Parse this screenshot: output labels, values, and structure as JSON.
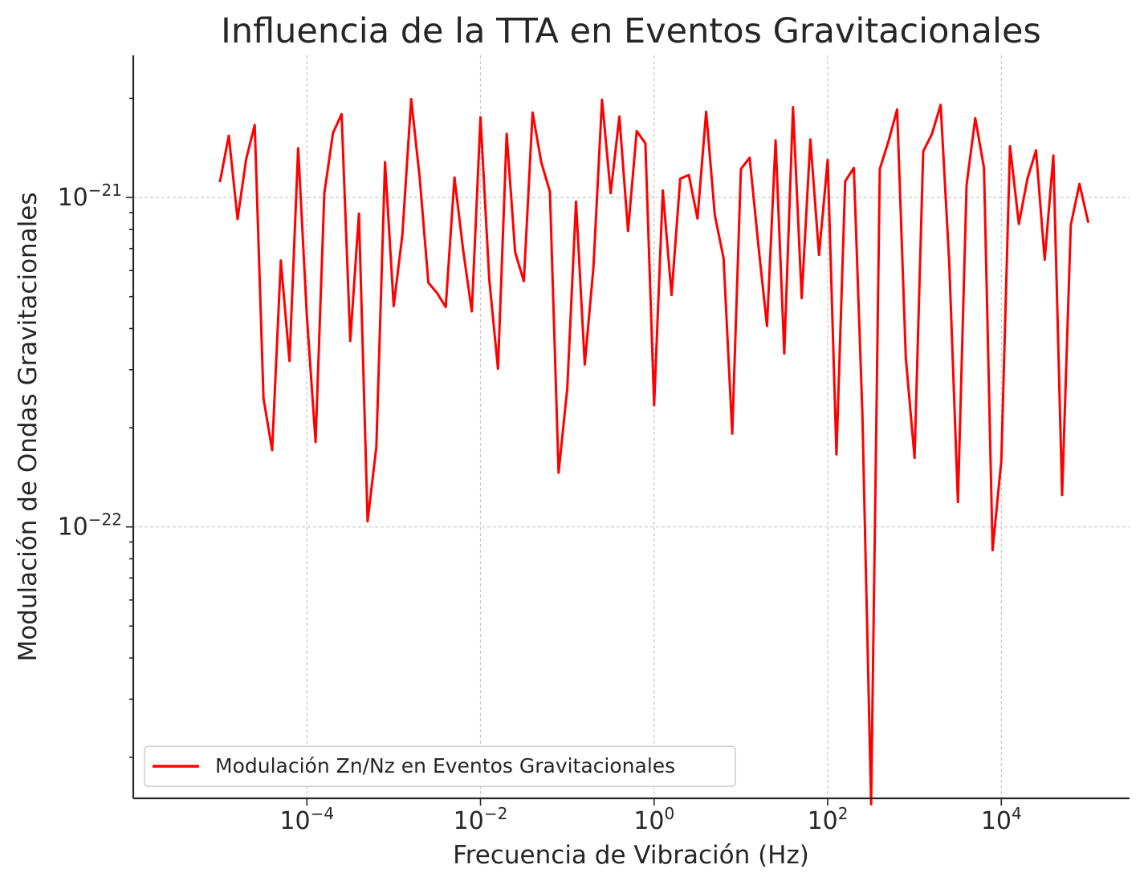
{
  "chart_data": {
    "type": "line",
    "title": "Influencia de la TTA en Eventos Gravitacionales",
    "xlabel": "Frecuencia de Vibración (Hz)",
    "ylabel": "Modulación de Ondas Gravitacionales",
    "x_scale": "log",
    "y_scale": "log",
    "xlim": [
      1e-06,
      300000.0
    ],
    "ylim": [
      1.5e-23,
      2.7e-21
    ],
    "x_ticks": [
      {
        "base": "10",
        "exp": "−4",
        "value": 0.0001
      },
      {
        "base": "10",
        "exp": "−2",
        "value": 0.01
      },
      {
        "base": "10",
        "exp": "0",
        "value": 1
      },
      {
        "base": "10",
        "exp": "2",
        "value": 100
      },
      {
        "base": "10",
        "exp": "4",
        "value": 10000
      }
    ],
    "y_ticks": [
      {
        "base": "10",
        "exp": "−21",
        "value": 1e-21
      },
      {
        "base": "10",
        "exp": "−22",
        "value": 1e-22
      }
    ],
    "grid": true,
    "legend_position": "bottom-left",
    "series": [
      {
        "name": "Modulación Zn/Nz en Eventos Gravitacionales",
        "color": "#ff0000",
        "x": [
          1e-05,
          1.26e-05,
          1.59e-05,
          2e-05,
          2.51e-05,
          3.16e-05,
          3.98e-05,
          5.01e-05,
          6.31e-05,
          7.94e-05,
          0.0001,
          0.000126,
          0.000159,
          0.0002,
          0.000251,
          0.000316,
          0.000398,
          0.000501,
          0.000631,
          0.000794,
          0.001,
          0.00126,
          0.00159,
          0.002,
          0.00251,
          0.00316,
          0.00398,
          0.00501,
          0.00631,
          0.00794,
          0.01,
          0.0126,
          0.0159,
          0.02,
          0.0251,
          0.0316,
          0.0398,
          0.0501,
          0.0631,
          0.0794,
          0.1,
          0.126,
          0.159,
          0.2,
          0.251,
          0.316,
          0.398,
          0.501,
          0.631,
          0.794,
          1.0,
          1.26,
          1.59,
          2.0,
          2.51,
          3.16,
          3.98,
          5.01,
          6.31,
          7.94,
          10.0,
          12.6,
          15.9,
          20.0,
          25.1,
          31.6,
          39.8,
          50.1,
          63.1,
          79.4,
          100,
          126,
          159,
          200,
          251,
          316,
          398,
          501,
          631,
          794,
          1000,
          1260,
          1590,
          2000,
          2510,
          3160,
          3980,
          5010,
          6310,
          7940,
          10000,
          12600,
          15900,
          20000,
          25100,
          31600,
          39800,
          50100,
          63100,
          79400,
          100000
        ],
        "y": [
          1.12e-21,
          1.54e-21,
          8.6e-22,
          1.31e-21,
          1.66e-21,
          2.46e-22,
          1.71e-22,
          6.44e-22,
          3.19e-22,
          1.41e-21,
          4.34e-22,
          1.81e-22,
          1.03e-21,
          1.57e-21,
          1.79e-21,
          3.67e-22,
          8.93e-22,
          1.04e-22,
          1.75e-22,
          1.28e-21,
          4.68e-22,
          7.7e-22,
          1.99e-21,
          1.14e-21,
          5.51e-22,
          5.13e-22,
          4.65e-22,
          1.15e-21,
          6.93e-22,
          4.51e-22,
          1.75e-21,
          5.65e-22,
          3.02e-22,
          1.56e-21,
          6.82e-22,
          5.57e-22,
          1.81e-21,
          1.28e-21,
          1.04e-21,
          1.46e-22,
          2.63e-22,
          9.72e-22,
          3.11e-22,
          6.14e-22,
          1.98e-21,
          1.03e-21,
          1.76e-21,
          7.91e-22,
          1.59e-21,
          1.46e-21,
          2.34e-22,
          1.05e-21,
          5.06e-22,
          1.14e-21,
          1.17e-21,
          8.63e-22,
          1.82e-21,
          8.84e-22,
          6.54e-22,
          1.92e-22,
          1.22e-21,
          1.32e-21,
          7.14e-22,
          4.07e-22,
          1.49e-21,
          3.36e-22,
          1.88e-21,
          4.95e-22,
          1.5e-21,
          6.69e-22,
          1.3e-21,
          1.66e-22,
          1.12e-21,
          1.23e-21,
          2.21e-22,
          1.44e-23,
          1.22e-21,
          1.48e-21,
          1.85e-21,
          3.26e-22,
          1.62e-22,
          1.38e-21,
          1.56e-21,
          1.91e-21,
          6.34e-22,
          1.19e-22,
          1.09e-21,
          1.74e-21,
          1.23e-21,
          8.5e-23,
          1.59e-22,
          1.43e-21,
          8.31e-22,
          1.14e-21,
          1.39e-21,
          6.47e-22,
          1.34e-21,
          1.25e-22,
          8.24e-22,
          1.1e-21,
          8.44e-22
        ]
      }
    ]
  }
}
